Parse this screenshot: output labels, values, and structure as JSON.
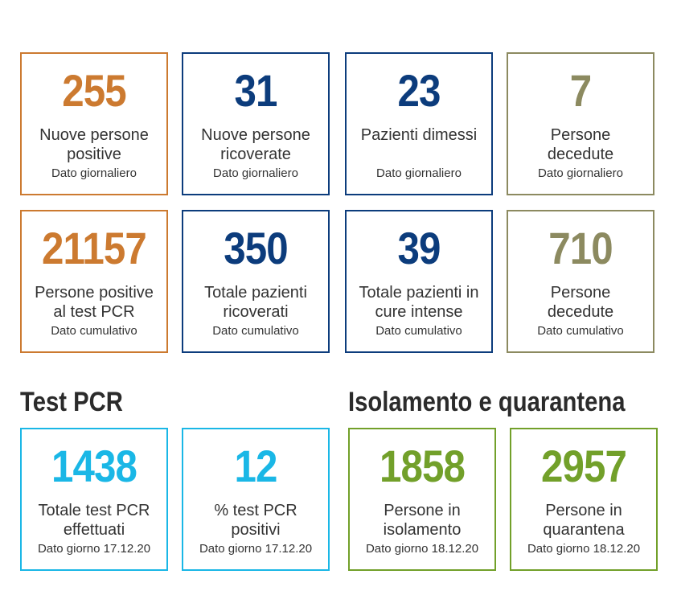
{
  "colors": {
    "orange": "#cc7a30",
    "navy": "#0c3c7c",
    "olive": "#8c8a60",
    "cyan": "#1ab7e6",
    "green": "#72a02a",
    "text": "#333333"
  },
  "daily": [
    {
      "value": "255",
      "label_1": "Nuove persone",
      "label_2": "positive",
      "sub": "Dato giornaliero"
    },
    {
      "value": "31",
      "label_1": "Nuove persone",
      "label_2": "ricoverate",
      "sub": "Dato giornaliero"
    },
    {
      "value": "23",
      "label_1": "Pazienti dimessi",
      "label_2": "",
      "sub": "Dato giornaliero"
    },
    {
      "value": "7",
      "label_1": "Persone",
      "label_2": "decedute",
      "sub": "Dato giornaliero"
    }
  ],
  "cumulative": [
    {
      "value": "21157",
      "label_1": "Persone positive",
      "label_2": "al test PCR",
      "sub": "Dato cumulativo"
    },
    {
      "value": "350",
      "label_1": "Totale pazienti",
      "label_2": "ricoverati",
      "sub": "Dato cumulativo"
    },
    {
      "value": "39",
      "label_1": "Totale pazienti in",
      "label_2": "cure intense",
      "sub": "Dato cumulativo"
    },
    {
      "value": "710",
      "label_1": "Persone",
      "label_2": "decedute",
      "sub": "Dato cumulativo"
    }
  ],
  "test_pcr": {
    "title": "Test PCR",
    "cards": [
      {
        "value": "1438",
        "label_1": "Totale test PCR",
        "label_2": "effettuati",
        "sub": "Dato giorno 17.12.20"
      },
      {
        "value": "12",
        "label_1": "% test PCR",
        "label_2": "positivi",
        "sub": "Dato giorno 17.12.20"
      }
    ]
  },
  "isolation": {
    "title": "Isolamento e quarantena",
    "cards": [
      {
        "value": "1858",
        "label_1": "Persone in",
        "label_2": "isolamento",
        "sub": "Dato giorno 18.12.20"
      },
      {
        "value": "2957",
        "label_1": "Persone in",
        "label_2": "quarantena",
        "sub": "Dato giorno 18.12.20"
      }
    ]
  }
}
